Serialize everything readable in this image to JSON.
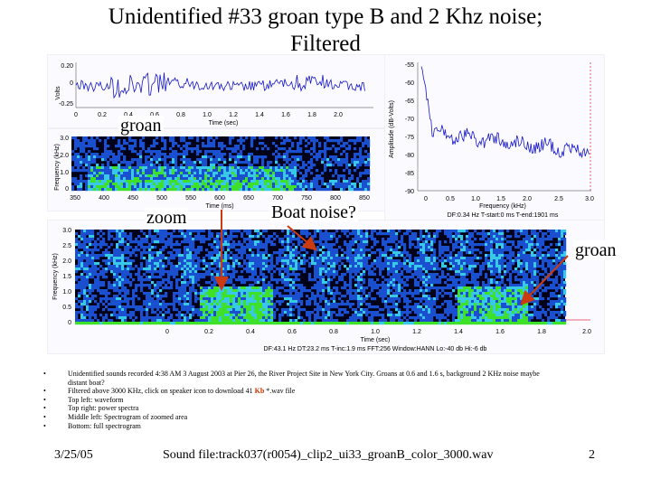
{
  "title": {
    "line1": "Unidentified #33 groan type B and 2 Khz noise;",
    "line2": "Filtered"
  },
  "waveform": {
    "ylabel": "Volts",
    "xlabel": "Time (sec)",
    "yticks": [
      "0.20",
      "0",
      "-0.25"
    ],
    "xticks": [
      "0",
      "0.2",
      "0.4",
      "0.6",
      "0.8",
      "1.0",
      "1.2",
      "1.4",
      "1.6",
      "1.8",
      "2.0"
    ]
  },
  "power_spectrum": {
    "ylabel": "Amplitude (dB-Volts)",
    "xlabel": "Frequency (kHz)",
    "yticks": [
      "-55",
      "-60",
      "-65",
      "-70",
      "-75",
      "-80",
      "-85",
      "-90"
    ],
    "xticks": [
      "0",
      "0.5",
      "1.0",
      "1.5",
      "2.0",
      "2.5",
      "3.0"
    ],
    "footer": "DF:0.34 Hz    T-start:0 ms    T-end:1901 ms"
  },
  "zoom_spectrogram": {
    "ylabel": "Frequency (kHz)",
    "xlabel": "Time (ms)",
    "yticks": [
      "3.0",
      "2.0",
      "1.0",
      "0"
    ],
    "xticks": [
      "350",
      "400",
      "450",
      "500",
      "550",
      "600",
      "650",
      "700",
      "750",
      "800",
      "850"
    ]
  },
  "full_spectrogram": {
    "ylabel": "Frequency (kHz)",
    "xlabel": "Time (sec)",
    "yticks": [
      "3.0",
      "2.5",
      "2.0",
      "1.5",
      "1.0",
      "0.5",
      "0"
    ],
    "xticks": [
      "0",
      "0.2",
      "0.4",
      "0.6",
      "0.8",
      "1.0",
      "1.2",
      "1.4",
      "1.6",
      "1.8",
      "2.0"
    ],
    "footer": "DF:43.1 Hz    DT:23.2 ms    T-inc:1.9 ms    FFT:256    Window:HANN    Lo:-40 db    Hi:-6 db"
  },
  "annotations": {
    "groan_top": "groan",
    "zoom": "zoom",
    "boat_noise": "Boat noise?",
    "groan_right": "groan"
  },
  "bullets": {
    "item1": "Unidentified sounds recorded 4:38 AM 3 August 2003 at Pier 26, the River Project Site in New York City.  Groans at 0.6 and 1.6 s, background 2 KHz noise maybe distant boat?",
    "item2_pre": "Filtered above 3000 KHz, click on speaker icon to download 41 ",
    "item2_kb": "Kb",
    "item2_post": " *.wav file",
    "item3": "Top left: waveform",
    "item4": "Top right: power spectra",
    "item5": "Middle left: Spectrogram of zoomed area",
    "item6": "Bottom: full spectrogram"
  },
  "footer": {
    "date": "3/25/05",
    "sound_file": "Sound file:track037(r0054)_clip2_ui33_groanB_color_3000.wav",
    "page": "2"
  },
  "colors": {
    "trace": "#1515c8",
    "spec_dark": "#000018",
    "spec_blue": "#1a4fd0",
    "spec_cyan": "#39c9e8",
    "spec_green": "#3fe02a",
    "arrow": "#cc3a10",
    "cutoff_line": "#e0304a"
  }
}
